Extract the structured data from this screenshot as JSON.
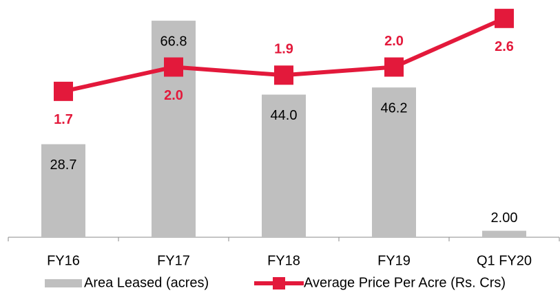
{
  "chart_data": {
    "type": "bar-line",
    "categories": [
      "FY16",
      "FY17",
      "FY18",
      "FY19",
      "Q1 FY20"
    ],
    "series": [
      {
        "name": "Area Leased (acres)",
        "type": "bar",
        "color": "#bfbfbf",
        "values": [
          28.7,
          66.8,
          44.0,
          46.2,
          2.0
        ],
        "value_labels": [
          "28.7",
          "66.8",
          "44.0",
          "46.2",
          "2.00"
        ]
      },
      {
        "name": "Average Price Per Acre (Rs. Crs)",
        "type": "line",
        "axis": "y2",
        "color": "#e3193b",
        "values": [
          1.7,
          2.0,
          1.9,
          2.0,
          2.6
        ],
        "value_labels": [
          "1.7",
          "2.0",
          "1.9",
          "2.0",
          "2.6"
        ]
      }
    ],
    "ylim": [
      0,
      70
    ],
    "y2lim": [
      -0.1,
      2.7
    ],
    "grid": false,
    "legend": "bottom"
  }
}
